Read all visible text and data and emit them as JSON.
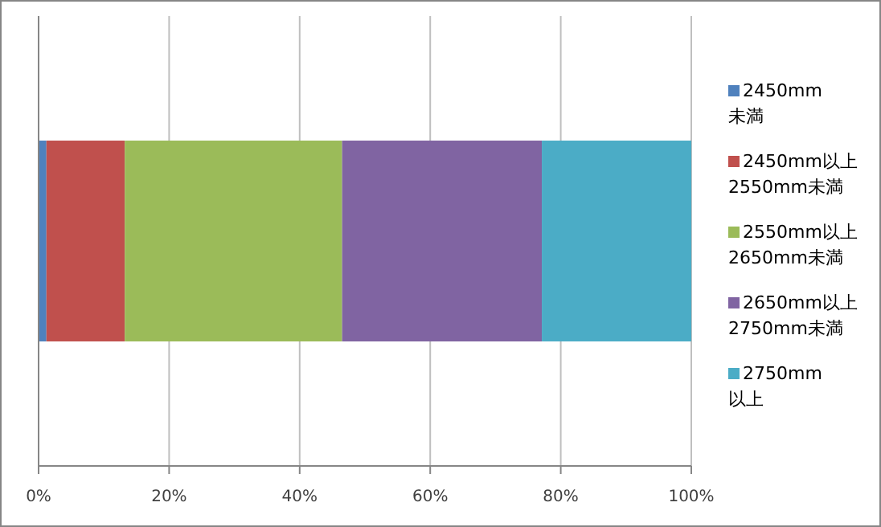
{
  "chart_data": {
    "type": "bar",
    "orientation": "horizontal",
    "stacked": true,
    "categories": [
      null
    ],
    "series": [
      {
        "name": "2450mm\n未満",
        "color": "#4f81bd",
        "values": [
          1.2
        ]
      },
      {
        "name": "2450mm以上\n2550mm未満",
        "color": "#c0504d",
        "values": [
          12.0
        ]
      },
      {
        "name": "2550mm以上\n2650mm未満",
        "color": "#9bbb59",
        "values": [
          33.3
        ]
      },
      {
        "name": "2650mm以上\n2750mm未満",
        "color": "#8064a2",
        "values": [
          30.6
        ]
      },
      {
        "name": "2750mm\n以上",
        "color": "#4bacc6",
        "values": [
          22.9
        ]
      }
    ],
    "xlim": [
      0,
      100
    ],
    "xticks": [
      {
        "value": 0,
        "label": "0%"
      },
      {
        "value": 20,
        "label": "20%"
      },
      {
        "value": 40,
        "label": "40%"
      },
      {
        "value": 60,
        "label": "60%"
      },
      {
        "value": 80,
        "label": "80%"
      },
      {
        "value": 100,
        "label": "100%"
      }
    ],
    "grid": "x",
    "legend": "right"
  }
}
